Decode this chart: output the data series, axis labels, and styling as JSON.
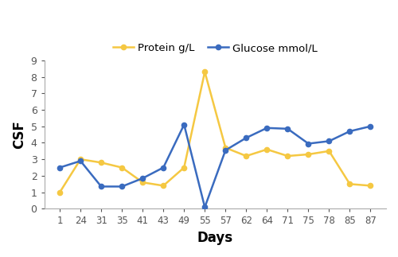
{
  "days_labels": [
    "1",
    "24",
    "31",
    "35",
    "41",
    "43",
    "49",
    "55",
    "57",
    "62",
    "64",
    "71",
    "75",
    "78",
    "85",
    "87"
  ],
  "protein": [
    1.0,
    3.0,
    2.8,
    2.5,
    1.6,
    1.4,
    2.5,
    8.3,
    3.7,
    3.2,
    3.6,
    3.2,
    3.3,
    3.5,
    1.5,
    1.4
  ],
  "glucose": [
    2.5,
    2.9,
    1.35,
    1.35,
    1.85,
    2.5,
    5.1,
    0.1,
    3.55,
    4.3,
    4.9,
    4.85,
    3.95,
    4.1,
    4.7,
    5.0
  ],
  "protein_color": "#F5C842",
  "glucose_color": "#3A6BBF",
  "xlabel": "Days",
  "ylabel": "CSF",
  "ylim": [
    0,
    9
  ],
  "yticks": [
    0,
    1,
    2,
    3,
    4,
    5,
    6,
    7,
    8,
    9
  ],
  "legend_protein": "Protein g/L",
  "legend_glucose": "Glucose mmol/L",
  "marker": "o",
  "marker_size": 4.5,
  "linewidth": 1.8
}
